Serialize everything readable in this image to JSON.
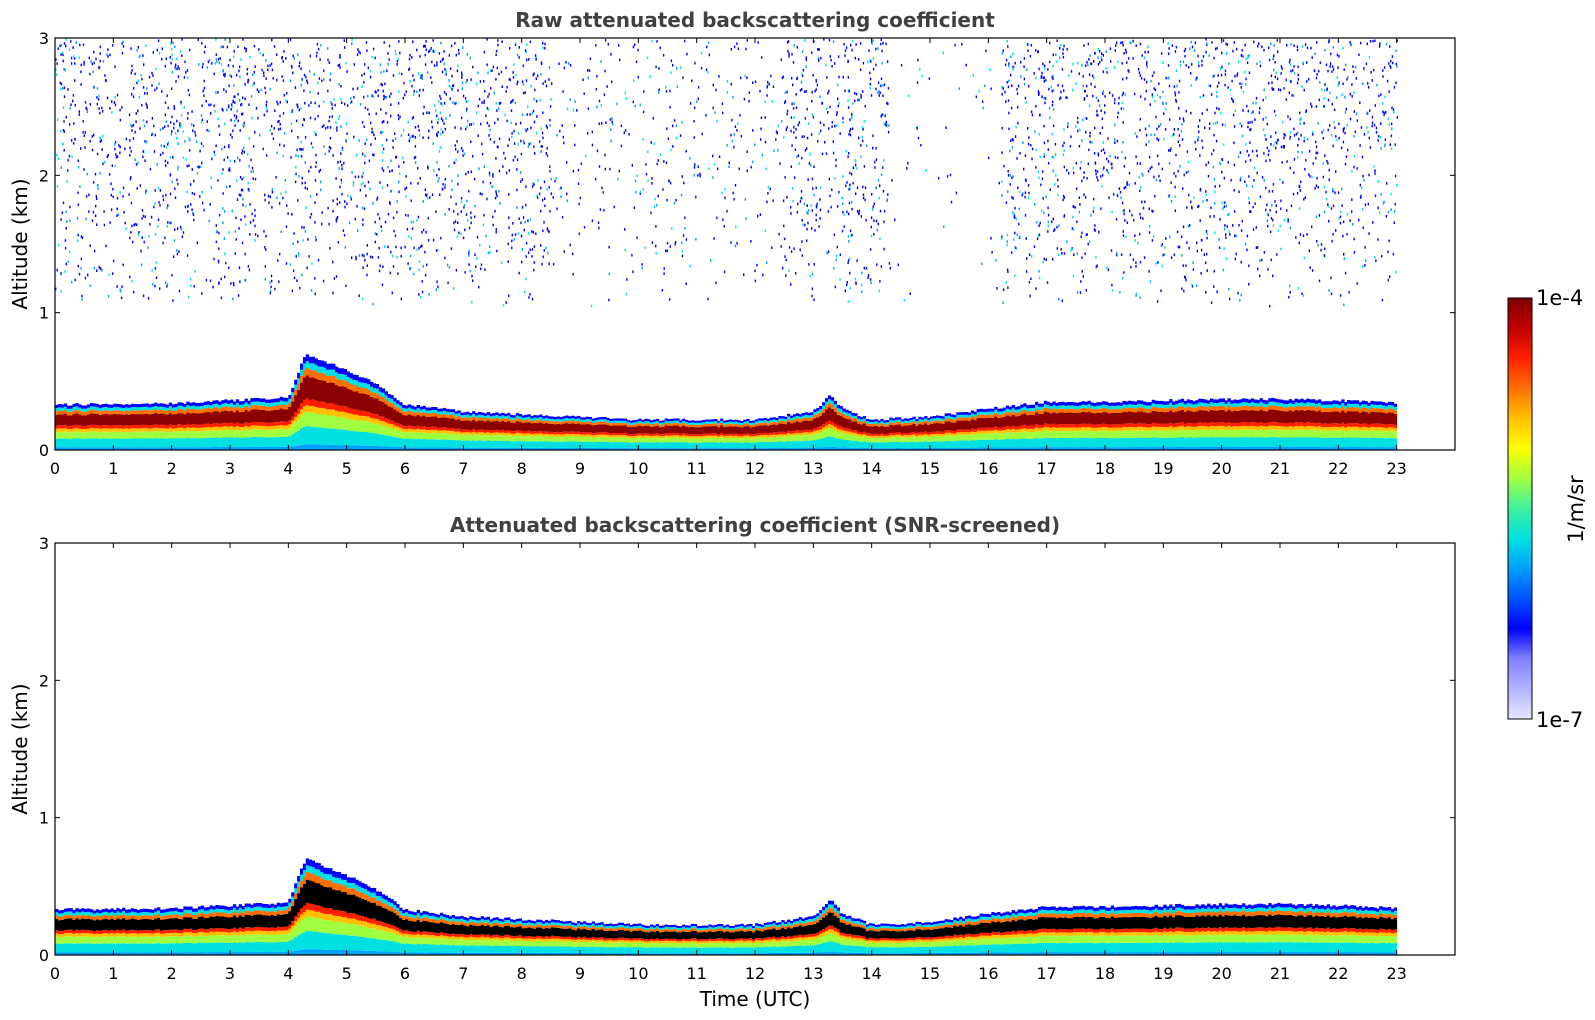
{
  "chart_data": [
    {
      "type": "heatmap",
      "title": "Raw attenuated backscattering coefficient",
      "xlabel": "",
      "ylabel": "Altitude (km)",
      "xlim": [
        0,
        24
      ],
      "ylim": [
        0,
        3
      ],
      "xticks": [
        "0",
        "1",
        "2",
        "3",
        "4",
        "5",
        "6",
        "7",
        "8",
        "9",
        "10",
        "11",
        "12",
        "13",
        "14",
        "15",
        "16",
        "17",
        "18",
        "19",
        "20",
        "21",
        "22",
        "23"
      ],
      "yticks": [
        "0",
        "1",
        "2",
        "3"
      ],
      "data_end_time": 23,
      "noise": true,
      "boundary_layer_top_km": [
        [
          0,
          0.33
        ],
        [
          2,
          0.34
        ],
        [
          3,
          0.36
        ],
        [
          4,
          0.38
        ],
        [
          4.3,
          0.7
        ],
        [
          5,
          0.58
        ],
        [
          5.5,
          0.48
        ],
        [
          6,
          0.33
        ],
        [
          7,
          0.28
        ],
        [
          8,
          0.26
        ],
        [
          9,
          0.24
        ],
        [
          10,
          0.22
        ],
        [
          11,
          0.22
        ],
        [
          12,
          0.22
        ],
        [
          13,
          0.28
        ],
        [
          13.3,
          0.4
        ],
        [
          13.5,
          0.3
        ],
        [
          14,
          0.22
        ],
        [
          15,
          0.24
        ],
        [
          16,
          0.3
        ],
        [
          17,
          0.35
        ],
        [
          18,
          0.35
        ],
        [
          19,
          0.36
        ],
        [
          20,
          0.37
        ],
        [
          21,
          0.37
        ],
        [
          22,
          0.36
        ],
        [
          23,
          0.34
        ]
      ]
    },
    {
      "type": "heatmap",
      "title": "Attenuated backscattering coefficient (SNR-screened)",
      "xlabel": "Time (UTC)",
      "ylabel": "Altitude (km)",
      "xlim": [
        0,
        24
      ],
      "ylim": [
        0,
        3
      ],
      "xticks": [
        "0",
        "1",
        "2",
        "3",
        "4",
        "5",
        "6",
        "7",
        "8",
        "9",
        "10",
        "11",
        "12",
        "13",
        "14",
        "15",
        "16",
        "17",
        "18",
        "19",
        "20",
        "21",
        "22",
        "23"
      ],
      "yticks": [
        "0",
        "1",
        "2",
        "3"
      ],
      "data_end_time": 23,
      "noise": false,
      "boundary_layer_top_km": [
        [
          0,
          0.33
        ],
        [
          2,
          0.34
        ],
        [
          3,
          0.36
        ],
        [
          4,
          0.38
        ],
        [
          4.3,
          0.7
        ],
        [
          5,
          0.58
        ],
        [
          5.5,
          0.48
        ],
        [
          6,
          0.33
        ],
        [
          7,
          0.28
        ],
        [
          8,
          0.26
        ],
        [
          9,
          0.24
        ],
        [
          10,
          0.22
        ],
        [
          11,
          0.22
        ],
        [
          12,
          0.22
        ],
        [
          13,
          0.28
        ],
        [
          13.3,
          0.4
        ],
        [
          13.5,
          0.3
        ],
        [
          14,
          0.22
        ],
        [
          15,
          0.24
        ],
        [
          16,
          0.3
        ],
        [
          17,
          0.35
        ],
        [
          18,
          0.35
        ],
        [
          19,
          0.36
        ],
        [
          20,
          0.37
        ],
        [
          21,
          0.37
        ],
        [
          22,
          0.36
        ],
        [
          23,
          0.34
        ]
      ]
    }
  ],
  "colorbar": {
    "max_label": "1e-4",
    "min_label": "1e-7",
    "unit_label": "1/m/sr",
    "colormap": [
      "#e6e6ff",
      "#b4b4ff",
      "#8080ff",
      "#0000ff",
      "#0050ff",
      "#00a0ff",
      "#00e0e0",
      "#40f0a0",
      "#a0ff40",
      "#ffff00",
      "#ffc000",
      "#ff7000",
      "#ff2000",
      "#c00000",
      "#800000"
    ]
  }
}
